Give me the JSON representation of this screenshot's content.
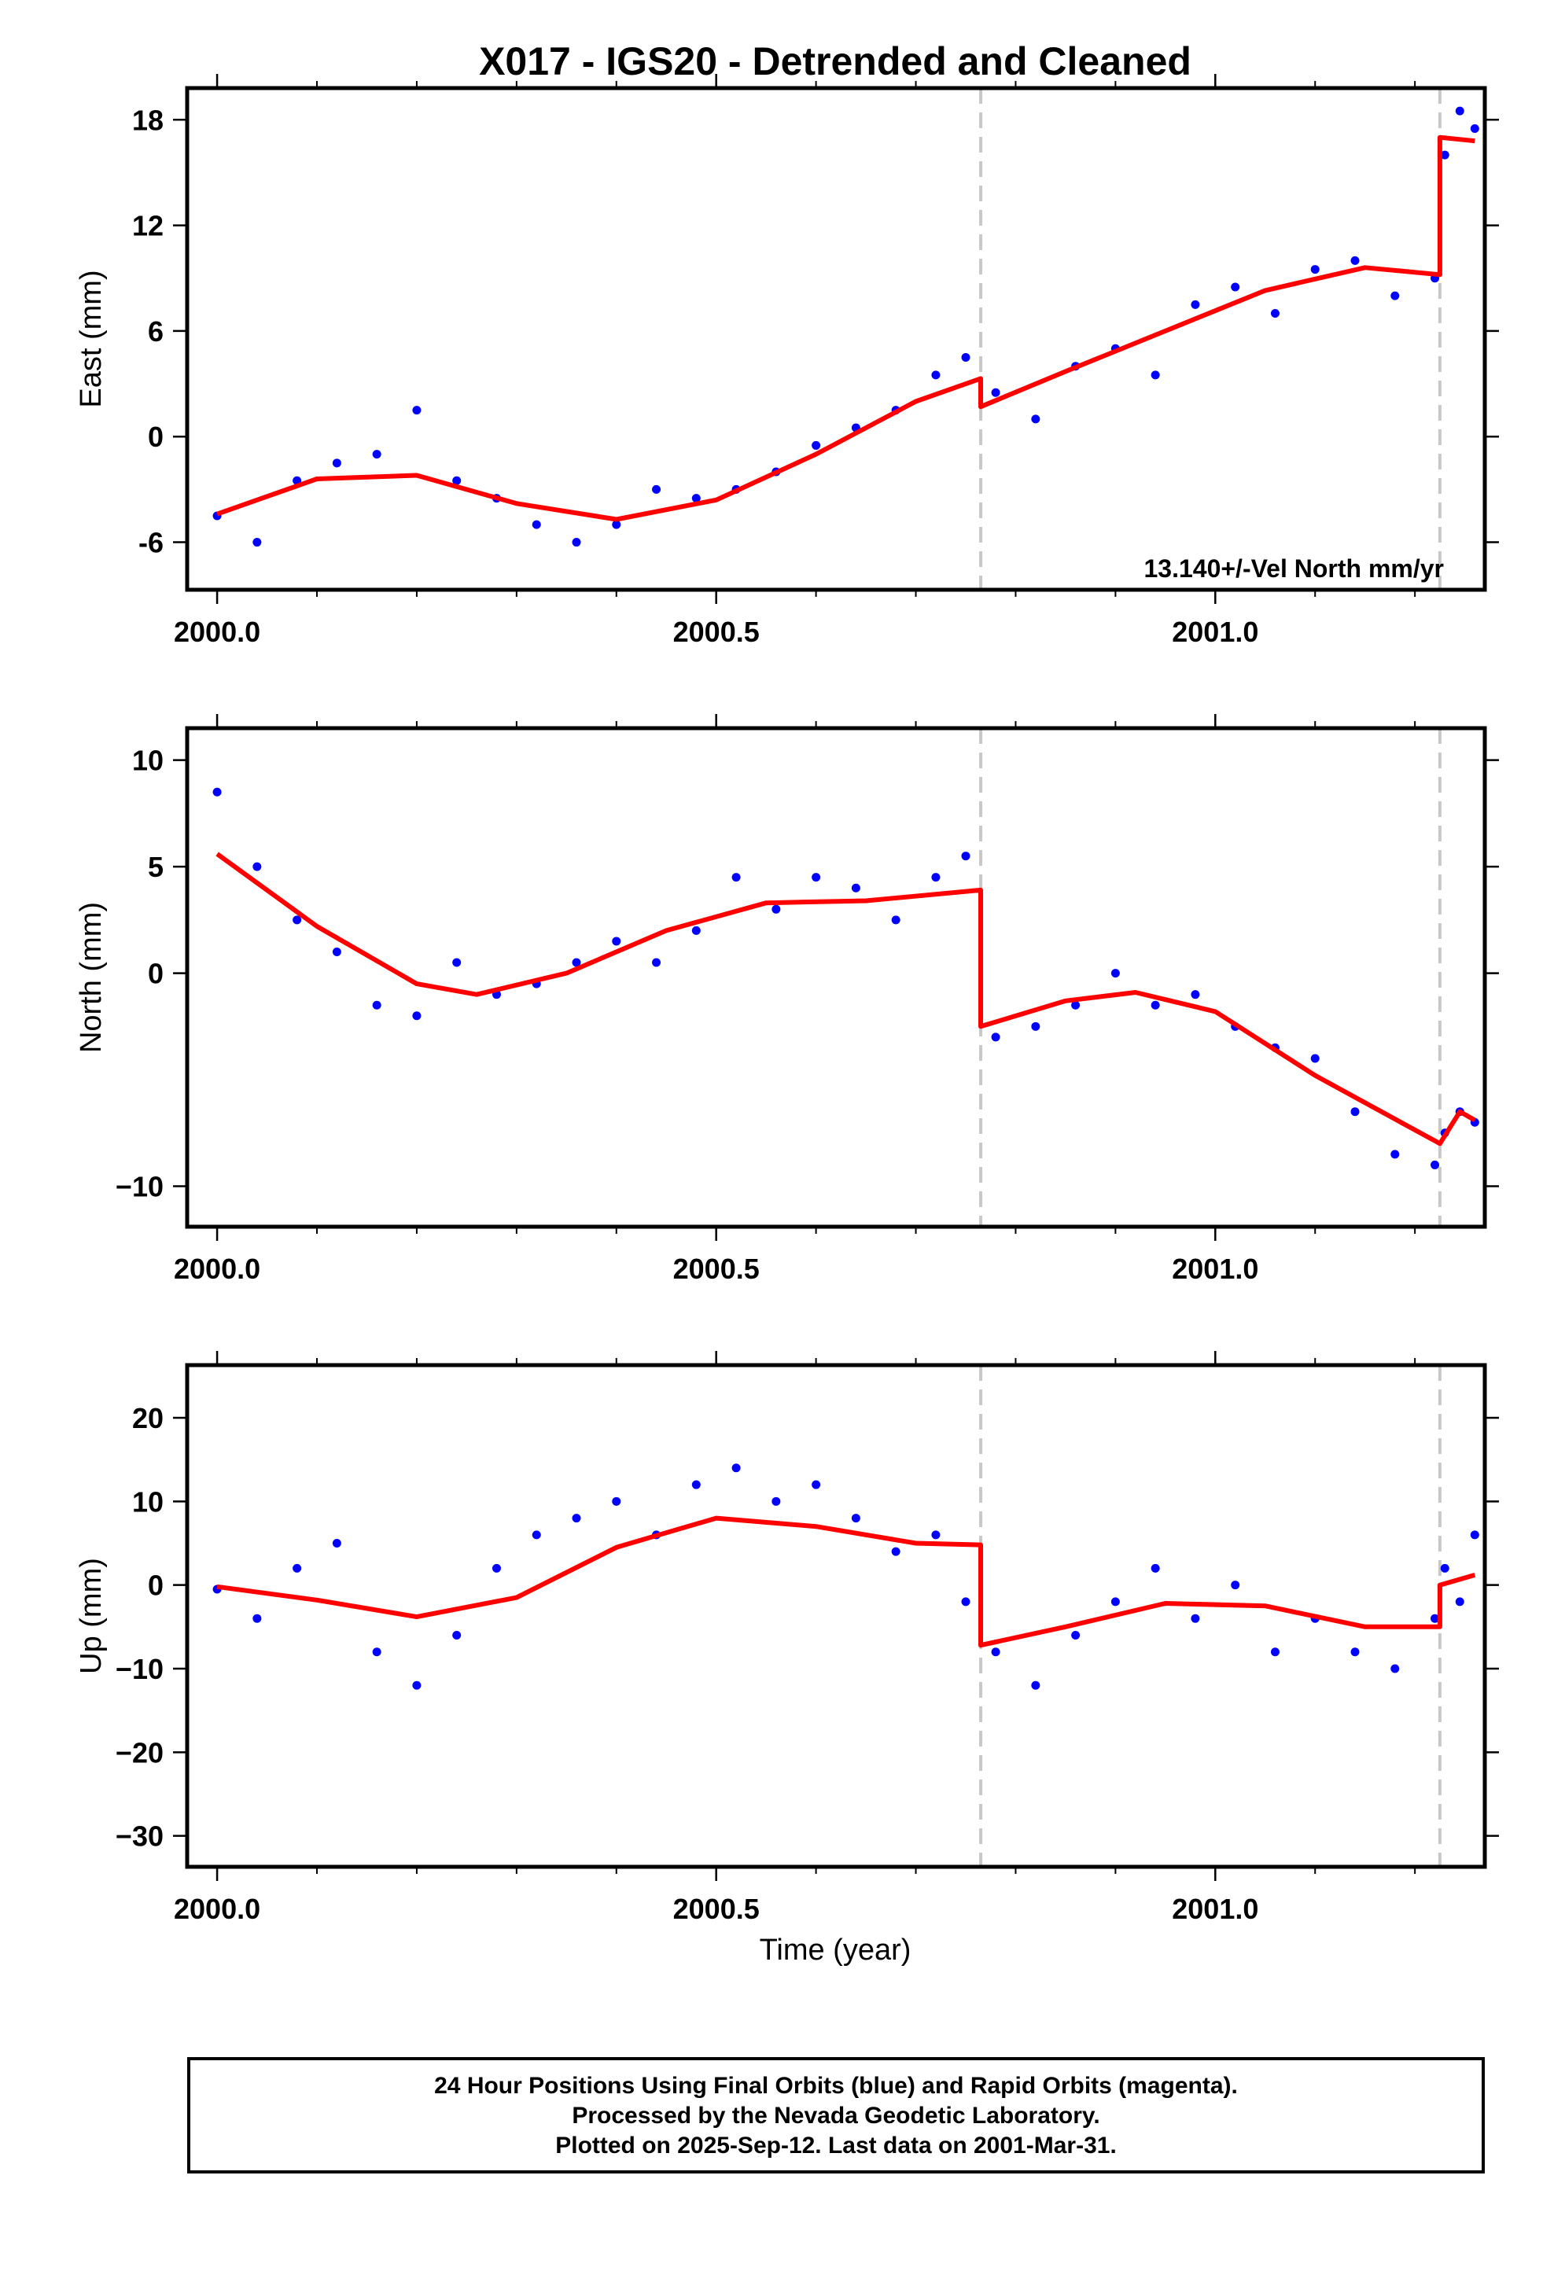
{
  "title": "X017 - IGS20 - Detrended and Cleaned",
  "colors": {
    "final_orbits": "#0000ff",
    "model": "#ff0000",
    "break_line": "#c8c8c8",
    "frame": "#000000"
  },
  "xlabel": "Time (year)",
  "footer": {
    "line1": "24 Hour Positions Using Final Orbits (blue) and Rapid Orbits (magenta).",
    "line2": "Processed by the Nevada Geodetic Laboratory.",
    "line3": "Plotted on 2025-Sep-12. Last data on 2001-Mar-31."
  },
  "chart_data": [
    {
      "type": "scatter",
      "ylabel": "East (mm)",
      "annotation": "13.140+/-Vel North mm/yr",
      "xlim": [
        1999.97,
        2001.27
      ],
      "ylim": [
        -8.7,
        19.8
      ],
      "x_ticks": [
        "2000.0",
        "2000.5",
        "2001.0"
      ],
      "y_ticks": [
        "18",
        "12",
        "6",
        "0",
        "-6"
      ],
      "breaks": [
        2000.765,
        2001.225
      ],
      "series": [
        {
          "kind": "points",
          "color": "#0000ff",
          "x": [
            2000.0,
            2000.04,
            2000.08,
            2000.12,
            2000.16,
            2000.2,
            2000.24,
            2000.28,
            2000.32,
            2000.36,
            2000.4,
            2000.44,
            2000.48,
            2000.52,
            2000.56,
            2000.6,
            2000.64,
            2000.68,
            2000.72,
            2000.75,
            2000.78,
            2000.82,
            2000.86,
            2000.9,
            2000.94,
            2000.98,
            2001.02,
            2001.06,
            2001.1,
            2001.14,
            2001.18,
            2001.22,
            2001.23,
            2001.245,
            2001.26
          ],
          "y": [
            -4.5,
            -6.0,
            -2.5,
            -1.5,
            -1.0,
            1.5,
            -2.5,
            -3.5,
            -5.0,
            -6.0,
            -5.0,
            -3.0,
            -3.5,
            -3.0,
            -2.0,
            -0.5,
            0.5,
            1.5,
            3.5,
            4.5,
            2.5,
            1.0,
            4.0,
            5.0,
            3.5,
            7.5,
            8.5,
            7.0,
            9.5,
            10.0,
            8.0,
            9.0,
            16.0,
            18.5,
            17.5
          ]
        },
        {
          "kind": "line",
          "color": "#ff0000",
          "x": [
            2000.0,
            2000.1,
            2000.2,
            2000.3,
            2000.4,
            2000.5,
            2000.6,
            2000.7,
            2000.765,
            2000.765,
            2000.85,
            2000.95,
            2001.05,
            2001.15,
            2001.225,
            2001.225,
            2001.26
          ],
          "y": [
            -4.4,
            -2.4,
            -2.2,
            -3.8,
            -4.7,
            -3.6,
            -1.0,
            2.0,
            3.3,
            1.7,
            3.7,
            6.0,
            8.3,
            9.6,
            9.2,
            17.0,
            16.8
          ]
        }
      ]
    },
    {
      "type": "scatter",
      "ylabel": "North (mm)",
      "xlim": [
        1999.97,
        2001.27
      ],
      "ylim": [
        -11.9,
        11.5
      ],
      "x_ticks": [
        "2000.0",
        "2000.5",
        "2001.0"
      ],
      "y_ticks": [
        "10",
        "5",
        "0",
        "−10"
      ],
      "breaks": [
        2000.765,
        2001.225
      ],
      "series": [
        {
          "kind": "points",
          "color": "#0000ff",
          "x": [
            2000.0,
            2000.04,
            2000.08,
            2000.12,
            2000.16,
            2000.2,
            2000.24,
            2000.28,
            2000.32,
            2000.36,
            2000.4,
            2000.44,
            2000.48,
            2000.52,
            2000.56,
            2000.6,
            2000.64,
            2000.68,
            2000.72,
            2000.75,
            2000.78,
            2000.82,
            2000.86,
            2000.9,
            2000.94,
            2000.98,
            2001.02,
            2001.06,
            2001.1,
            2001.14,
            2001.18,
            2001.22,
            2001.23,
            2001.245,
            2001.26
          ],
          "y": [
            8.5,
            5.0,
            2.5,
            1.0,
            -1.5,
            -2.0,
            0.5,
            -1.0,
            -0.5,
            0.5,
            1.5,
            0.5,
            2.0,
            4.5,
            3.0,
            4.5,
            4.0,
            2.5,
            4.5,
            5.5,
            -3.0,
            -2.5,
            -1.5,
            0.0,
            -1.5,
            -1.0,
            -2.5,
            -3.5,
            -4.0,
            -6.5,
            -8.5,
            -9.0,
            -7.5,
            -6.5,
            -7.0
          ]
        },
        {
          "kind": "line",
          "color": "#ff0000",
          "x": [
            2000.0,
            2000.1,
            2000.2,
            2000.26,
            2000.35,
            2000.45,
            2000.55,
            2000.65,
            2000.765,
            2000.765,
            2000.85,
            2000.92,
            2001.0,
            2001.1,
            2001.225,
            2001.225,
            2001.245,
            2001.26
          ],
          "y": [
            5.6,
            2.2,
            -0.5,
            -1.0,
            0.0,
            2.0,
            3.3,
            3.4,
            3.9,
            -2.5,
            -1.3,
            -0.9,
            -1.8,
            -4.8,
            -8.0,
            -8.0,
            -6.5,
            -6.9
          ]
        }
      ]
    },
    {
      "type": "scatter",
      "ylabel": "Up (mm)",
      "xlim": [
        1999.97,
        2001.27
      ],
      "ylim": [
        -33.7,
        26.3
      ],
      "x_ticks": [
        "2000.0",
        "2000.5",
        "2001.0"
      ],
      "y_ticks": [
        "20",
        "10",
        "0",
        "−10",
        "−20",
        "−30"
      ],
      "breaks": [
        2000.765,
        2001.225
      ],
      "series": [
        {
          "kind": "points",
          "color": "#0000ff",
          "x": [
            2000.0,
            2000.04,
            2000.08,
            2000.12,
            2000.16,
            2000.2,
            2000.24,
            2000.28,
            2000.32,
            2000.36,
            2000.4,
            2000.44,
            2000.48,
            2000.52,
            2000.56,
            2000.6,
            2000.64,
            2000.68,
            2000.72,
            2000.75,
            2000.78,
            2000.82,
            2000.86,
            2000.9,
            2000.94,
            2000.98,
            2001.02,
            2001.06,
            2001.1,
            2001.14,
            2001.18,
            2001.22,
            2001.23,
            2001.245,
            2001.26
          ],
          "y": [
            -0.5,
            -4.0,
            2.0,
            5.0,
            -8.0,
            -12.0,
            -6.0,
            2.0,
            6.0,
            8.0,
            10.0,
            6.0,
            12.0,
            14.0,
            10.0,
            12.0,
            8.0,
            4.0,
            6.0,
            -2.0,
            -8.0,
            -12.0,
            -6.0,
            -2.0,
            2.0,
            -4.0,
            0.0,
            -8.0,
            -4.0,
            -8.0,
            -10.0,
            -4.0,
            2.0,
            -2.0,
            6.0
          ]
        },
        {
          "kind": "line",
          "color": "#ff0000",
          "x": [
            2000.0,
            2000.1,
            2000.2,
            2000.3,
            2000.4,
            2000.5,
            2000.6,
            2000.7,
            2000.765,
            2000.765,
            2000.85,
            2000.95,
            2001.05,
            2001.15,
            2001.225,
            2001.225,
            2001.26
          ],
          "y": [
            -0.2,
            -1.8,
            -3.8,
            -1.5,
            4.5,
            8.0,
            7.0,
            5.0,
            4.8,
            -7.2,
            -5.0,
            -2.2,
            -2.5,
            -5.0,
            -5.0,
            0.0,
            1.2
          ]
        }
      ]
    }
  ]
}
